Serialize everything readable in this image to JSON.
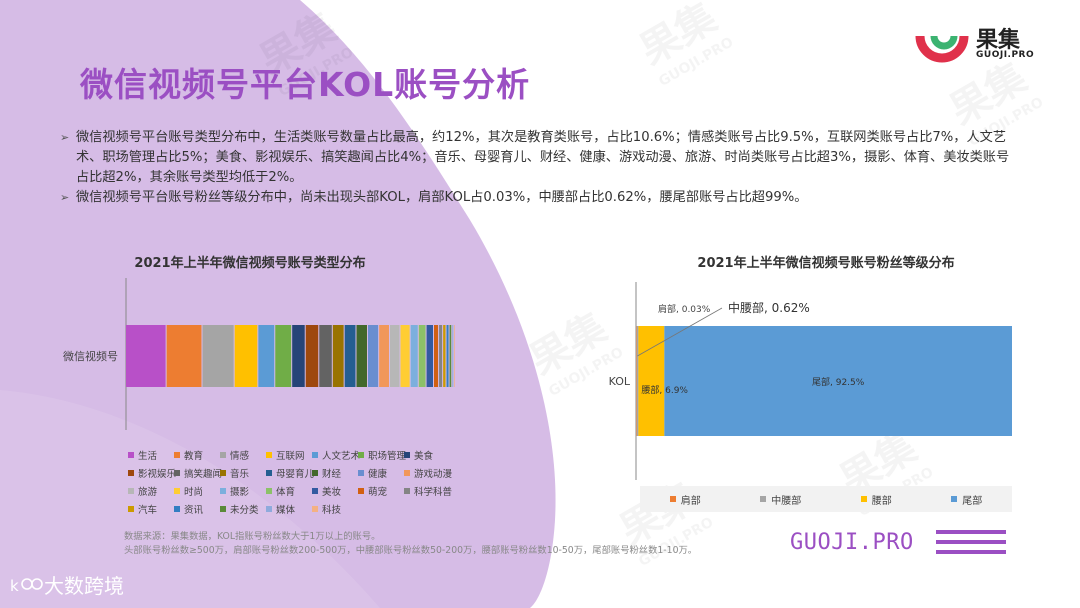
{
  "page": {
    "title": "微信视频号平台KOL账号分析",
    "logo_cn": "果集",
    "logo_en": "GUOJI.PRO",
    "bullets": [
      "微信视频号平台账号类型分布中，生活类账号数量占比最高，约12%，其次是教育类账号，占比10.6%；情感类账号占比9.5%，互联网类账号占比7%，人文艺术、职场管理占比5%；美食、影视娱乐、搞笑趣闻占比4%；音乐、母婴育儿、财经、健康、游戏动漫、旅游、时尚类账号占比超3%，摄影、体育、美妆类账号占比超2%，其余账号类型均低于2%。",
      "微信视频号平台账号粉丝等级分布中，尚未出现头部KOL，肩部KOL占0.03%，中腰部占比0.62%，腰尾部账号占比超99%。"
    ],
    "bullet_mark": "➢",
    "source_lines": [
      "数据来源：果集数据，KOL指账号粉丝数大于1万以上的账号。",
      "头部账号粉丝数≥500万，肩部账号粉丝数200-500万，中腰部账号粉丝数50-200万，腰部账号粉丝数10-50万，尾部账号粉丝数1-10万。"
    ],
    "brand_url": "GUOJI.PRO",
    "footer_brand": "大数跨境",
    "watermark_cn": "果集",
    "watermark_en": "GUOJI.PRO"
  },
  "chart_data": [
    {
      "type": "bar",
      "stacked": true,
      "orientation": "horizontal",
      "title": "2021年上半年微信视频号账号类型分布",
      "categories": [
        "微信视频号"
      ],
      "series": [
        {
          "name": "生活",
          "values": [
            12.0
          ],
          "color": "#B850C8"
        },
        {
          "name": "教育",
          "values": [
            10.6
          ],
          "color": "#ED7D31"
        },
        {
          "name": "情感",
          "values": [
            9.5
          ],
          "color": "#A5A5A5"
        },
        {
          "name": "互联网",
          "values": [
            7.0
          ],
          "color": "#FFC000"
        },
        {
          "name": "人文艺术",
          "values": [
            5.0
          ],
          "color": "#5B9BD5"
        },
        {
          "name": "职场管理",
          "values": [
            5.0
          ],
          "color": "#70AD47"
        },
        {
          "name": "美食",
          "values": [
            4.0
          ],
          "color": "#264478"
        },
        {
          "name": "影视娱乐",
          "values": [
            4.0
          ],
          "color": "#9E480E"
        },
        {
          "name": "搞笑趣闻",
          "values": [
            4.0
          ],
          "color": "#636363"
        },
        {
          "name": "音乐",
          "values": [
            3.5
          ],
          "color": "#997300"
        },
        {
          "name": "母婴育儿",
          "values": [
            3.5
          ],
          "color": "#255E91"
        },
        {
          "name": "财经",
          "values": [
            3.4
          ],
          "color": "#43682B"
        },
        {
          "name": "健康",
          "values": [
            3.3
          ],
          "color": "#698ED0"
        },
        {
          "name": "游戏动漫",
          "values": [
            3.2
          ],
          "color": "#F1975A"
        },
        {
          "name": "旅游",
          "values": [
            3.1
          ],
          "color": "#B7B7B7"
        },
        {
          "name": "时尚",
          "values": [
            3.0
          ],
          "color": "#FFCD33"
        },
        {
          "name": "摄影",
          "values": [
            2.4
          ],
          "color": "#7CAFDD"
        },
        {
          "name": "体育",
          "values": [
            2.3
          ],
          "color": "#8CC168"
        },
        {
          "name": "美妆",
          "values": [
            2.2
          ],
          "color": "#335AA1"
        },
        {
          "name": "萌宠",
          "values": [
            1.5
          ],
          "color": "#D26012"
        },
        {
          "name": "科学科普",
          "values": [
            1.2
          ],
          "color": "#848484"
        },
        {
          "name": "汽车",
          "values": [
            1.0
          ],
          "color": "#CC9A00"
        },
        {
          "name": "资讯",
          "values": [
            0.9
          ],
          "color": "#327DC2"
        },
        {
          "name": "未分类",
          "values": [
            0.8
          ],
          "color": "#5A8A39"
        },
        {
          "name": "媒体",
          "values": [
            0.6
          ],
          "color": "#8FAADC"
        },
        {
          "name": "科技",
          "values": [
            0.5
          ],
          "color": "#F4B183"
        }
      ],
      "legend_position": "bottom",
      "grid": false
    },
    {
      "type": "bar",
      "stacked": true,
      "orientation": "horizontal",
      "title": "2021年上半年微信视频号账号粉丝等级分布",
      "categories": [
        "KOL"
      ],
      "series": [
        {
          "name": "肩部",
          "values": [
            0.03
          ],
          "color": "#ED7D31",
          "label": "肩部, 0.03%"
        },
        {
          "name": "中腰部",
          "values": [
            0.62
          ],
          "color": "#A5A5A5",
          "label": "中腰部, 0.62%"
        },
        {
          "name": "腰部",
          "values": [
            6.9
          ],
          "color": "#FFC000",
          "label": "腰部, 6.9%"
        },
        {
          "name": "尾部",
          "values": [
            92.5
          ],
          "color": "#5B9BD5",
          "label": "尾部, 92.5%"
        }
      ],
      "legend_position": "bottom",
      "grid": false
    }
  ]
}
